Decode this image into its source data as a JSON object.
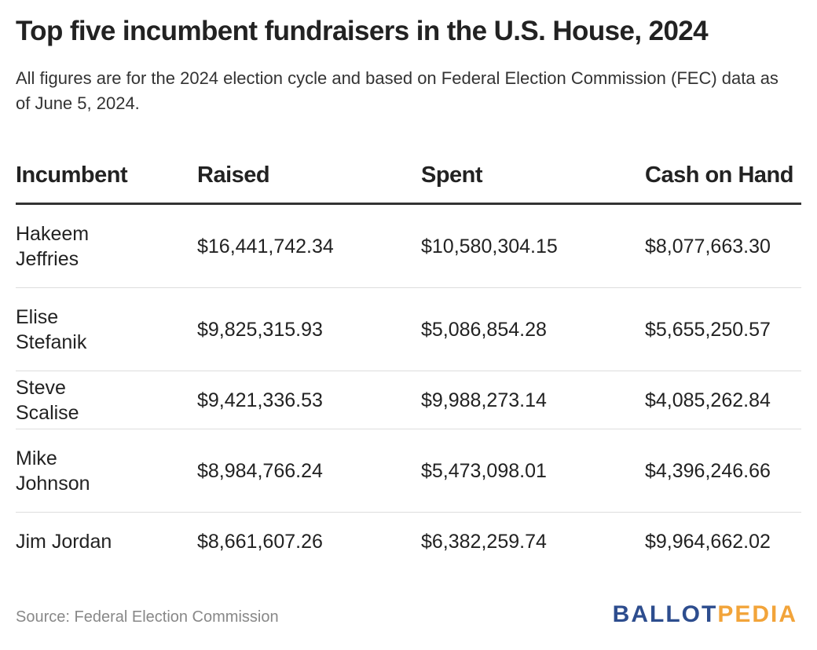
{
  "title": "Top five incumbent fundraisers in the U.S. House, 2024",
  "subtitle": "All figures are for the 2024 election cycle and based on Federal Election Commission (FEC) data as of June 5, 2024.",
  "source": "Source: Federal Election Commission",
  "logo": {
    "part1": "BALLOT",
    "part2": "PEDIA",
    "color1": "#2d4d8e",
    "color2": "#f2a43a"
  },
  "chart_data": {
    "type": "table",
    "columns": [
      "Incumbent",
      "Raised",
      "Spent",
      "Cash on Hand"
    ],
    "rows": [
      [
        "Hakeem Jeffries",
        "$16,441,742.34",
        "$10,580,304.15",
        "$8,077,663.30"
      ],
      [
        "Elise Stefanik",
        "$9,825,315.93",
        "$5,086,854.28",
        "$5,655,250.57"
      ],
      [
        "Steve Scalise",
        "$9,421,336.53",
        "$9,988,273.14",
        "$4,085,262.84"
      ],
      [
        "Mike Johnson",
        "$8,984,766.24",
        "$5,473,098.01",
        "$4,396,246.66"
      ],
      [
        "Jim Jordan",
        "$8,661,607.26",
        "$6,382,259.74",
        "$9,964,662.02"
      ]
    ]
  }
}
